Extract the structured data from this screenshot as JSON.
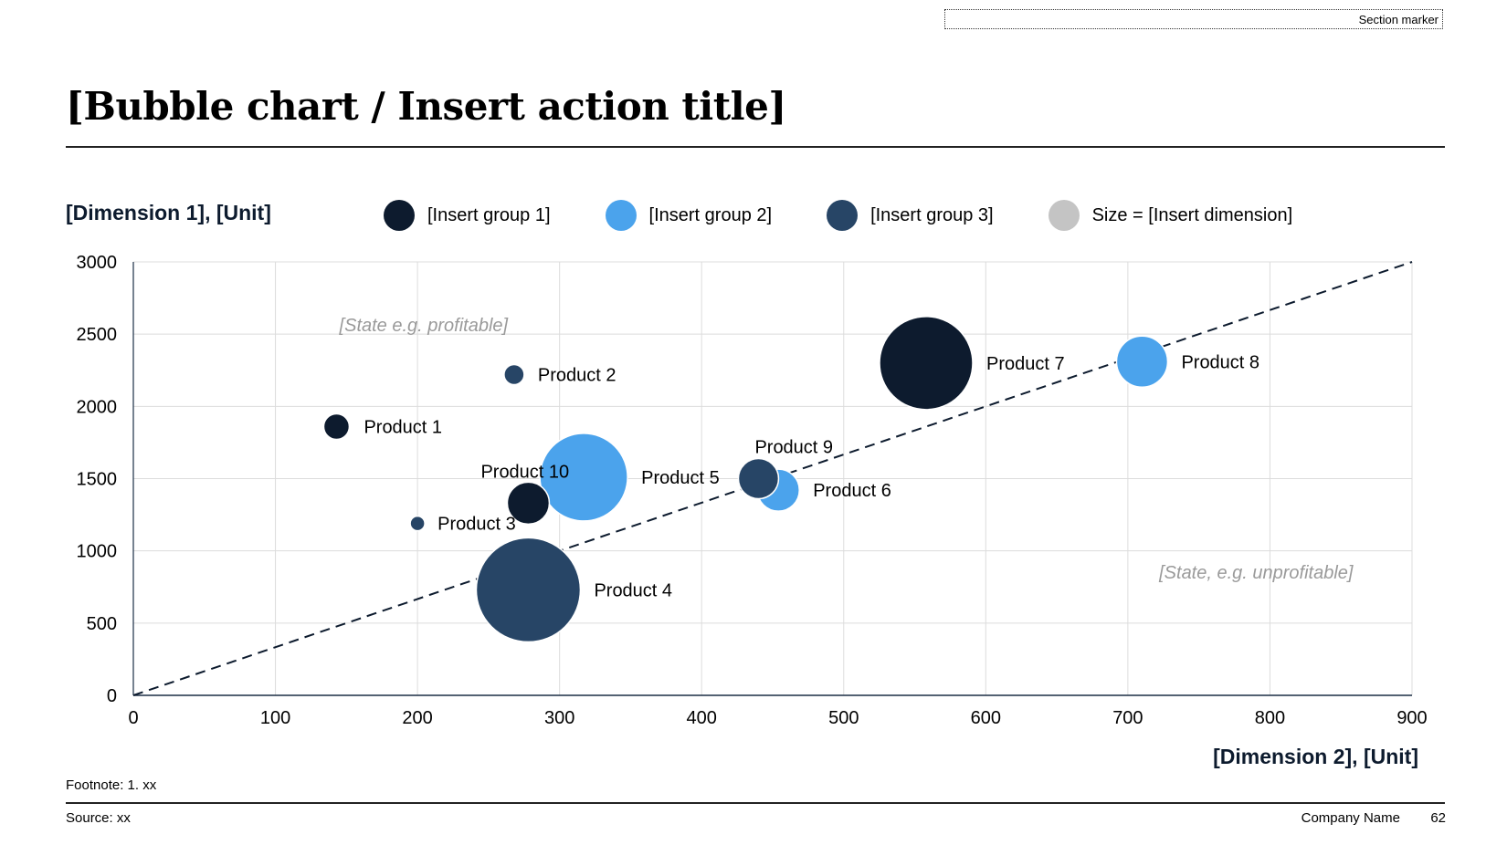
{
  "header": {
    "section_marker": "Section marker",
    "title": "[Bubble chart / Insert action title]"
  },
  "legend": {
    "items": [
      {
        "label": "[Insert group 1]",
        "color": "#0d1b2e"
      },
      {
        "label": "[Insert group 2]",
        "color": "#4ba3ec"
      },
      {
        "label": "[Insert group 3]",
        "color": "#274566"
      },
      {
        "label": "Size = [Insert dimension]",
        "color": "#c4c4c4"
      }
    ]
  },
  "chart_data": {
    "type": "scatter",
    "subtype": "bubble",
    "xlabel": "[Dimension 2], [Unit]",
    "ylabel": "[Dimension 1], [Unit]",
    "xlim": [
      0,
      900
    ],
    "ylim": [
      0,
      3000
    ],
    "x_ticks": [
      "0",
      "100",
      "200",
      "300",
      "400",
      "500",
      "600",
      "700",
      "800",
      "900"
    ],
    "y_ticks": [
      "0",
      "500",
      "1000",
      "1500",
      "2000",
      "2500",
      "3000"
    ],
    "grid": true,
    "legend_position": "top",
    "groups": [
      {
        "name": "[Insert group 1]",
        "color": "#0d1b2e"
      },
      {
        "name": "[Insert group 2]",
        "color": "#4ba3ec"
      },
      {
        "name": "[Insert group 3]",
        "color": "#274566"
      }
    ],
    "points": [
      {
        "label": "Product 1",
        "x": 143,
        "y": 1860,
        "size": 14,
        "group": 0
      },
      {
        "label": "Product 2",
        "x": 268,
        "y": 2220,
        "size": 11,
        "group": 2
      },
      {
        "label": "Product 3",
        "x": 200,
        "y": 1190,
        "size": 8,
        "group": 2
      },
      {
        "label": "Product 4",
        "x": 278,
        "y": 730,
        "size": 57,
        "group": 2
      },
      {
        "label": "Product 5",
        "x": 317,
        "y": 1510,
        "size": 48,
        "group": 1
      },
      {
        "label": "Product 6",
        "x": 454,
        "y": 1420,
        "size": 23,
        "group": 1
      },
      {
        "label": "Product 7",
        "x": 558,
        "y": 2300,
        "size": 51,
        "group": 0
      },
      {
        "label": "Product 8",
        "x": 710,
        "y": 2310,
        "size": 28,
        "group": 1
      },
      {
        "label": "Product 9",
        "x": 440,
        "y": 1500,
        "size": 22,
        "group": 2
      },
      {
        "label": "Product 10",
        "x": 278,
        "y": 1330,
        "size": 23,
        "group": 0
      }
    ],
    "reference_line": {
      "from": [
        0,
        0
      ],
      "to": [
        900,
        3000
      ],
      "style": "dashed"
    },
    "annotations": [
      {
        "text": "[State e.g. profitable]",
        "x": 145,
        "y": 2520
      },
      {
        "text": "[State, e.g. unprofitable]",
        "x": 722,
        "y": 810
      }
    ]
  },
  "footer": {
    "footnote": "Footnote: 1. xx",
    "source": "Source: xx",
    "company": "Company Name",
    "page_number": "62"
  }
}
